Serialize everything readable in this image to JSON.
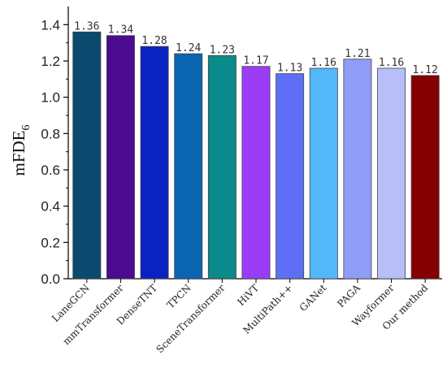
{
  "chart_data": {
    "type": "bar",
    "ylabel": "mFDE",
    "ylabel_subscript": "6",
    "ylim": [
      0,
      1.5
    ],
    "yticks": [
      "0.0",
      "0.2",
      "0.4",
      "0.6",
      "0.8",
      "1.0",
      "1.2",
      "1.4"
    ],
    "grid": false,
    "categories": [
      "LaneGCN",
      "mmTransformer",
      "DenseTNT",
      "TPCN",
      "SceneTransformer",
      "HiVT",
      "MultiPath++",
      "GANet",
      "PAGA",
      "Wayformer",
      "Our method"
    ],
    "values": [
      1.36,
      1.34,
      1.28,
      1.24,
      1.23,
      1.17,
      1.13,
      1.16,
      1.21,
      1.16,
      1.12
    ],
    "value_labels": [
      "1.36",
      "1.34",
      "1.28",
      "1.24",
      "1.23",
      "1.17",
      "1.13",
      "1.16",
      "1.21",
      "1.16",
      "1.12"
    ],
    "colors": [
      "#0b4a6e",
      "#4b0a8f",
      "#0a23c0",
      "#0a66b0",
      "#0a8a8a",
      "#9b3cf7",
      "#5f6ff5",
      "#52b8f8",
      "#8f9df7",
      "#b8bef7",
      "#850000"
    ],
    "value_label_colors": [
      "#333333",
      "#333333",
      "#333333",
      "#333333",
      "#333333",
      "#333333",
      "#333333",
      "#333333",
      "#333333",
      "#333333",
      "#e03030"
    ]
  }
}
